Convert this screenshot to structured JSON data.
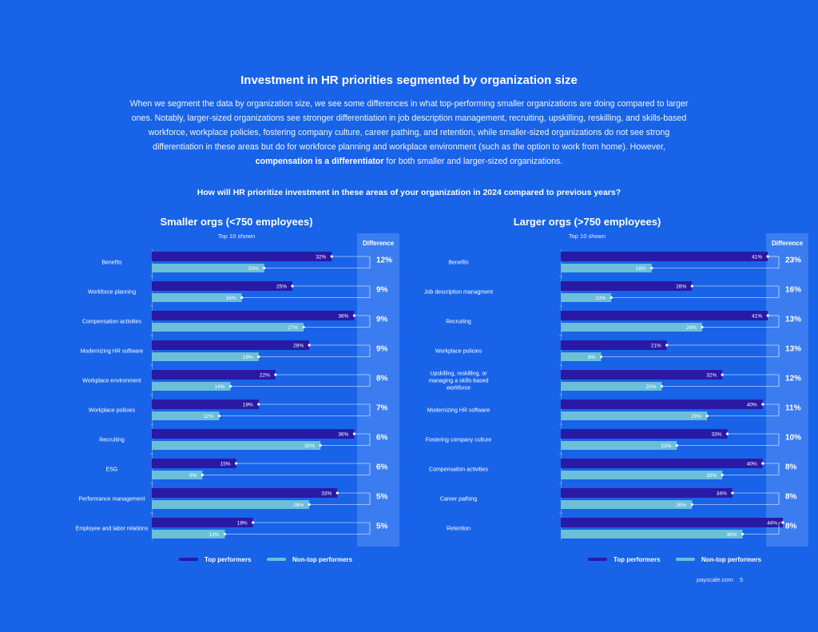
{
  "header": {
    "title": "Investment in HR priorities segmented by organization size",
    "intro_part1": "When we segment the data by organization size, we see some differences in what top-performing smaller organizations are doing compared to larger ones. Notably, larger-sized organizations see stronger differentiation in job description management, recruiting, upskilling, reskilling, and skills-based workforce, workplace policies, fostering company culture, career pathing, and retention, while smaller-sized organizations do not see strong differentiation in these areas but do for workforce planning and workplace environment (such as the option to work from home). However, ",
    "intro_bold": "compensation is a differentiator",
    "intro_part2": " for both smaller and larger-sized organizations.",
    "question": "How will HR prioritize investment in these areas of your organization in 2024 compared to previous years?"
  },
  "colors": {
    "background": "#1863e8",
    "top_performers": "#2a19a5",
    "non_top_performers": "#6cbfd8",
    "difference_column": "#3b7df0"
  },
  "chart_data": [
    {
      "type": "bar",
      "title": "Smaller orgs (<750 employees)",
      "subtitle": "Top 10 shown",
      "difference_header": "Difference",
      "categories": [
        "Benefits",
        "Workforce planning",
        "Compensation activities",
        "Modernizing HR software",
        "Workplace environment",
        "Workplace policies",
        "Recruiting",
        "ESG",
        "Performance management",
        "Employee and labor relations"
      ],
      "series": [
        {
          "name": "Top performers",
          "values": [
            32,
            25,
            36,
            28,
            22,
            19,
            36,
            15,
            33,
            18
          ]
        },
        {
          "name": "Non-top performers",
          "values": [
            20,
            16,
            27,
            19,
            14,
            12,
            30,
            9,
            28,
            13
          ]
        }
      ],
      "differences": [
        "12%",
        "9%",
        "9%",
        "9%",
        "8%",
        "7%",
        "6%",
        "6%",
        "5%",
        "5%"
      ],
      "value_suffix": "%",
      "xlim": [
        0,
        40
      ]
    },
    {
      "type": "bar",
      "title": "Larger orgs (>750 employees)",
      "subtitle": "Top 10 shown",
      "difference_header": "Difference",
      "categories": [
        "Benefits",
        "Job description managment",
        "Recruiting",
        "Workplace policies",
        "Upskilling, reskilling, or managing a skills-based workforce",
        "Modernizing HR software",
        "Fostering company culture",
        "Compensation activities",
        "Career pathing",
        "Retention"
      ],
      "series": [
        {
          "name": "Top performers",
          "values": [
            41,
            26,
            41,
            21,
            32,
            40,
            33,
            40,
            34,
            44
          ]
        },
        {
          "name": "Non-top performers",
          "values": [
            18,
            10,
            28,
            8,
            20,
            29,
            23,
            32,
            26,
            36
          ]
        }
      ],
      "differences": [
        "23%",
        "16%",
        "13%",
        "13%",
        "12%",
        "11%",
        "10%",
        "8%",
        "8%",
        "8%"
      ],
      "value_suffix": "%",
      "xlim": [
        0,
        48
      ]
    }
  ],
  "legend": {
    "top": "Top performers",
    "non_top": "Non-top performers"
  },
  "footer": {
    "site": "payscale.com",
    "page": "5"
  }
}
